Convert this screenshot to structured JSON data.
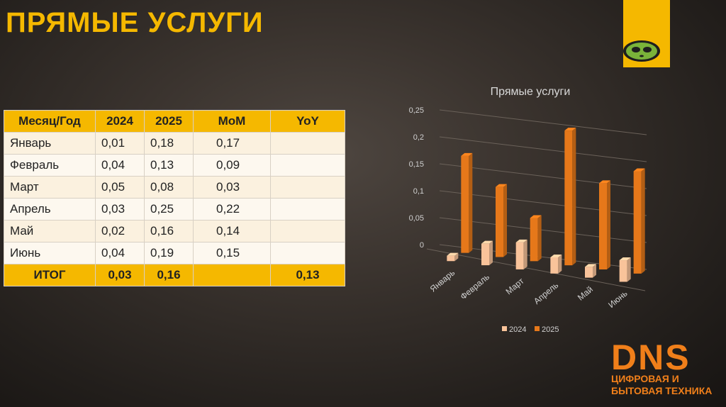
{
  "slide": {
    "title": "ПРЯМЫЕ УСЛУГИ"
  },
  "table": {
    "headers": [
      "Месяц/Год",
      "2024",
      "2025",
      "MoM",
      "YoY"
    ],
    "rows": [
      [
        "Январь",
        "0,01",
        "0,18",
        "0,17",
        ""
      ],
      [
        "Февраль",
        "0,04",
        "0,13",
        "0,09",
        ""
      ],
      [
        "Март",
        "0,05",
        "0,08",
        "0,03",
        ""
      ],
      [
        "Апрель",
        "0,03",
        "0,25",
        "0,22",
        ""
      ],
      [
        "Май",
        "0,02",
        "0,16",
        "0,14",
        ""
      ],
      [
        "Июнь",
        "0,04",
        "0,19",
        "0,15",
        ""
      ]
    ],
    "total": [
      "ИТОГ",
      "0,03",
      "0,16",
      "",
      "0,13"
    ]
  },
  "chart_data": {
    "type": "bar",
    "title": "Прямые услуги",
    "categories": [
      "Январь",
      "Февраль",
      "Март",
      "Апрель",
      "Май",
      "Июнь"
    ],
    "series": [
      {
        "name": "2024",
        "values": [
          0.01,
          0.04,
          0.05,
          0.03,
          0.02,
          0.04
        ],
        "color": "#f9c39a"
      },
      {
        "name": "2025",
        "values": [
          0.18,
          0.13,
          0.08,
          0.25,
          0.16,
          0.19
        ],
        "color": "#e6781a"
      }
    ],
    "ylim": [
      0,
      0.25
    ],
    "yticks": [
      "0",
      "0,05",
      "0,1",
      "0,15",
      "0,2",
      "0,25"
    ],
    "grid": true,
    "legend": "bottom",
    "style": "3d-column"
  },
  "brand": {
    "name": "DNS",
    "tagline_1": "ЦИФРОВАЯ И",
    "tagline_2": "БЫТОВАЯ ТЕХНИКА",
    "color": "#f07f1a",
    "accent": "#f5b800"
  }
}
